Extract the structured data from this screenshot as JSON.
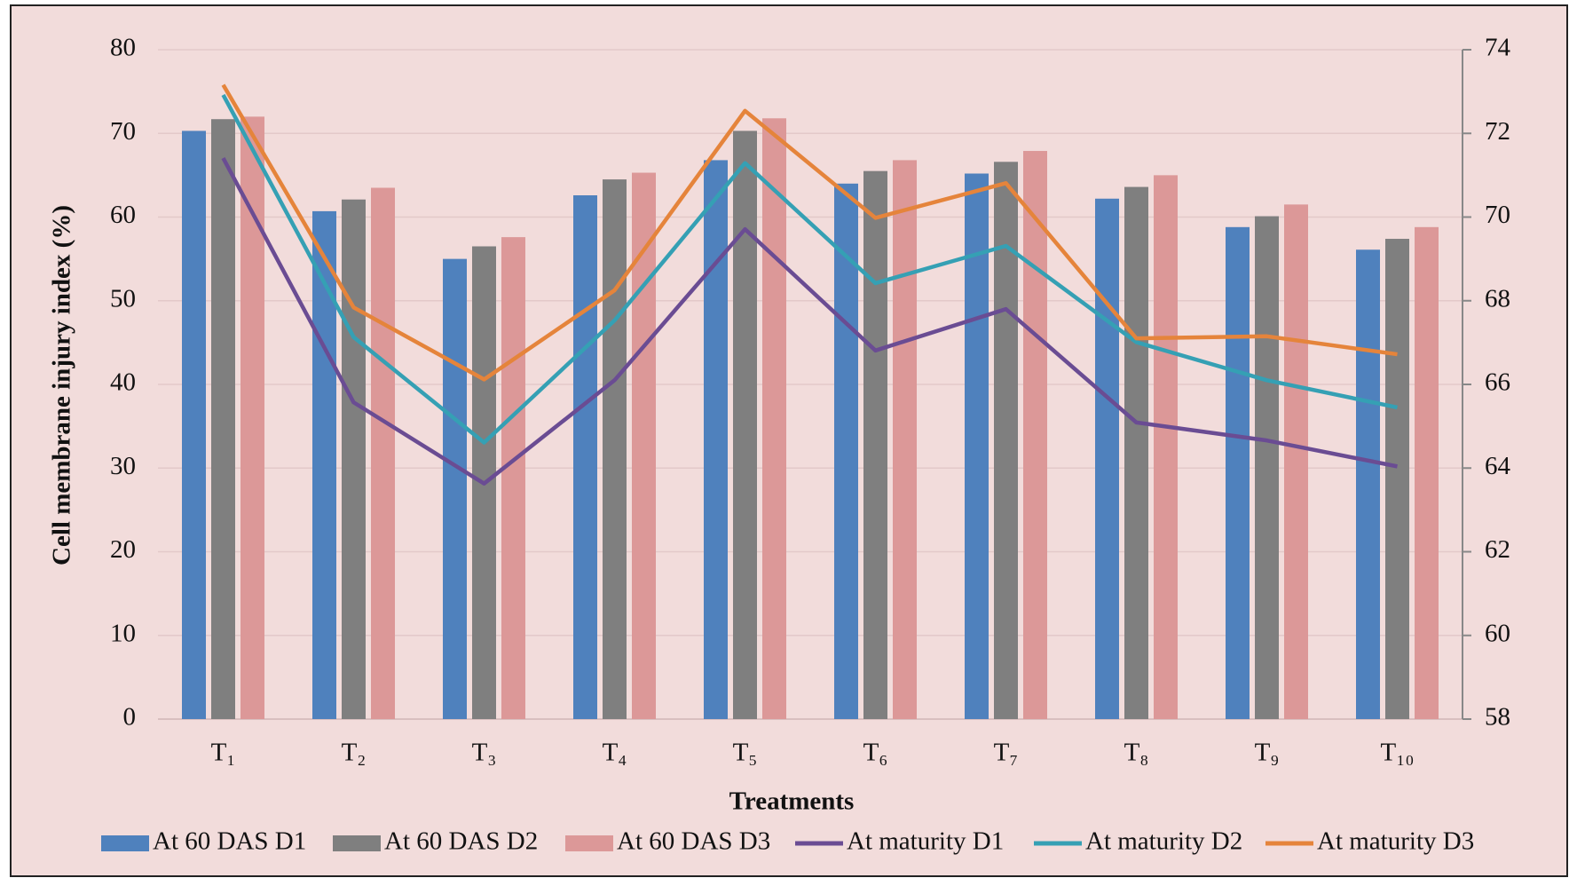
{
  "chart_data": {
    "type": "bar",
    "y_label": "Cell membrane injury index (%)",
    "x_label": "Treatments",
    "categories": [
      "T₁",
      "T₂",
      "T₃",
      "T₄",
      "T₅",
      "T₆",
      "T₇",
      "T₈",
      "T₉",
      "T₁₀"
    ],
    "ylim": [
      0,
      80
    ],
    "yticks": [
      0,
      10,
      20,
      30,
      40,
      50,
      60,
      70,
      80
    ],
    "y2lim": [
      58,
      74
    ],
    "y2ticks": [
      58,
      60,
      62,
      64,
      66,
      68,
      70,
      72,
      74
    ],
    "grid": true,
    "legend": "bottom",
    "series": [
      {
        "name": "At 60 DAS D1",
        "type": "bar",
        "color": "#4f81bd",
        "values": [
          70.3,
          60.7,
          55.0,
          62.6,
          66.8,
          64.0,
          65.2,
          62.2,
          58.8,
          56.1
        ]
      },
      {
        "name": "At 60 DAS D2",
        "type": "bar",
        "color": "#7f7f7f",
        "values": [
          71.7,
          62.1,
          56.5,
          64.5,
          70.3,
          65.5,
          66.6,
          63.6,
          60.1,
          57.4
        ]
      },
      {
        "name": "At 60 DAS D3",
        "type": "bar",
        "color": "#dc9898",
        "values": [
          72.0,
          63.5,
          57.6,
          65.3,
          71.8,
          66.8,
          67.9,
          65.0,
          61.5,
          58.8
        ]
      },
      {
        "name": "At maturity D1",
        "type": "line",
        "axis": "y2",
        "color": "#6a4c93",
        "values": [
          71.41,
          65.57,
          63.63,
          66.1,
          69.71,
          66.81,
          67.8,
          65.09,
          64.66,
          64.04
        ]
      },
      {
        "name": "At maturity D2",
        "type": "line",
        "axis": "y2",
        "color": "#35a0b4",
        "values": [
          72.92,
          67.13,
          64.61,
          67.53,
          71.29,
          68.42,
          69.31,
          67.01,
          66.1,
          65.45
        ]
      },
      {
        "name": "At maturity D3",
        "type": "line",
        "axis": "y2",
        "color": "#e5843b",
        "values": [
          73.16,
          67.84,
          66.12,
          68.25,
          72.54,
          69.98,
          70.81,
          67.1,
          67.15,
          66.72
        ]
      }
    ]
  }
}
